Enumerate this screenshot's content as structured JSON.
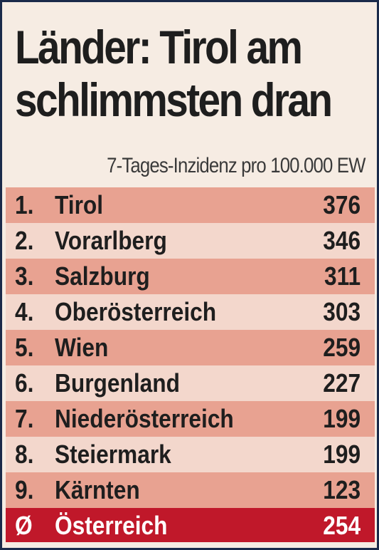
{
  "headline": {
    "line1": "Länder: Tirol am",
    "line2": "schlimmsten dran"
  },
  "subtitle": "7-Tages-Inzidenz pro 100.000 EW",
  "rows": [
    {
      "rank": "1.",
      "name": "Tirol",
      "value": "376"
    },
    {
      "rank": "2.",
      "name": "Vorarlberg",
      "value": "346"
    },
    {
      "rank": "3.",
      "name": "Salzburg",
      "value": "311"
    },
    {
      "rank": "4.",
      "name": "Oberösterreich",
      "value": "303"
    },
    {
      "rank": "5.",
      "name": "Wien",
      "value": "259"
    },
    {
      "rank": "6.",
      "name": "Burgenland",
      "value": "227"
    },
    {
      "rank": "7.",
      "name": "Niederösterreich",
      "value": "199"
    },
    {
      "rank": "8.",
      "name": "Steiermark",
      "value": "199"
    },
    {
      "rank": "9.",
      "name": "Kärnten",
      "value": "123"
    }
  ],
  "total": {
    "rank": "Ø",
    "name": "Österreich",
    "value": "254"
  },
  "colors": {
    "row_dark": "#e8a291",
    "row_light": "#f3d7cc",
    "total": "#c0182a",
    "frame": "#1a2a4a"
  }
}
